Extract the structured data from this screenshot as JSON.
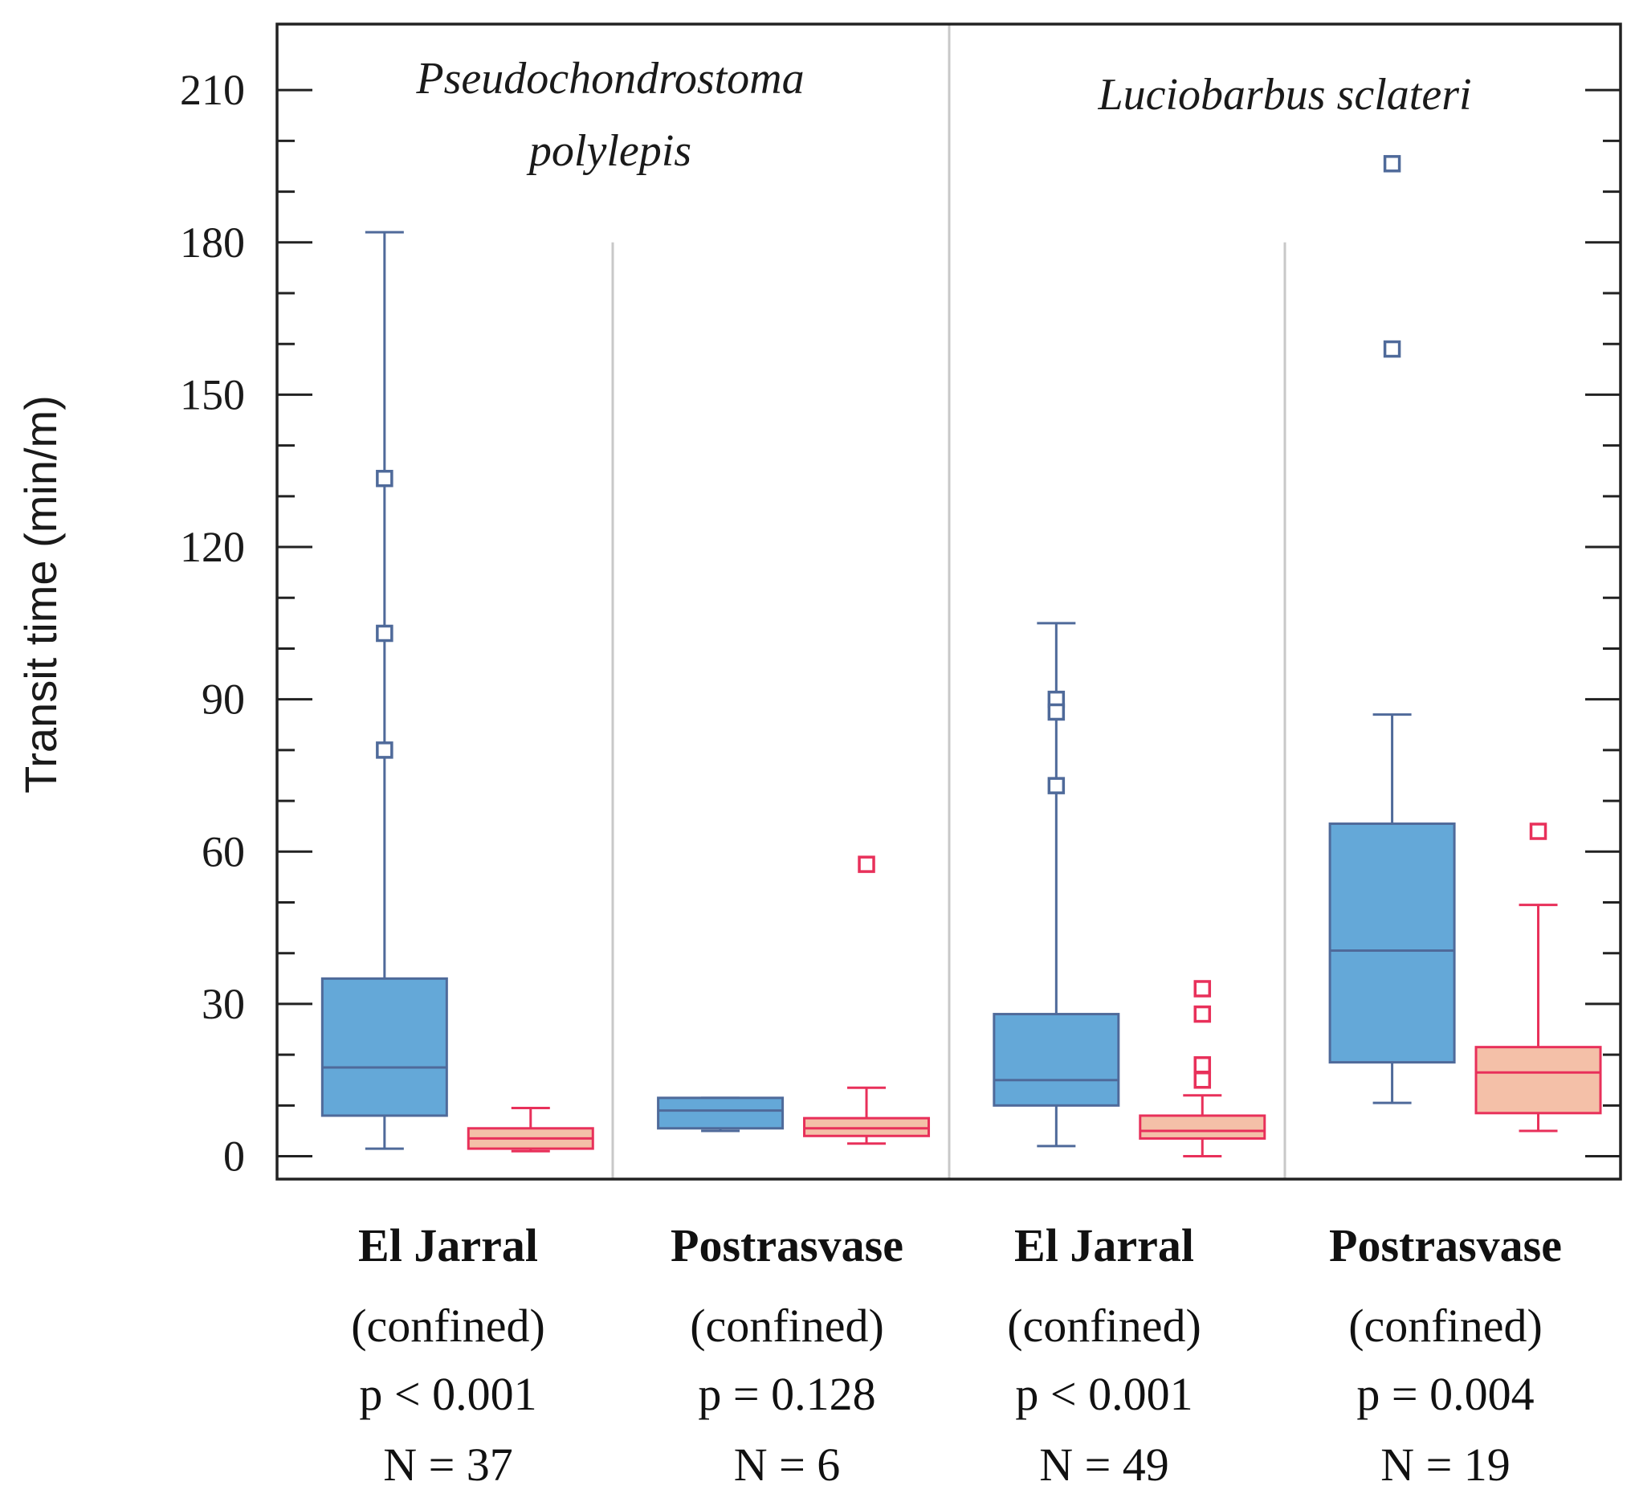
{
  "chart_data": {
    "type": "box",
    "ylabel": "Transit time (min/m)",
    "ylim": [
      -4.5,
      223
    ],
    "yticks": [
      0,
      30,
      60,
      90,
      120,
      150,
      180,
      210
    ],
    "grid": false,
    "species": [
      {
        "name": [
          "Pseudochondrostoma",
          "polylepis"
        ]
      },
      {
        "name": [
          "Luciobarbus sclateri"
        ]
      }
    ],
    "groups": [
      {
        "name": "El Jarral",
        "note": "(confined)",
        "p": "p < 0.001",
        "n": "N = 37"
      },
      {
        "name": "Postrasvase",
        "note": "(confined)",
        "p": "p = 0.128",
        "n": "N = 6"
      },
      {
        "name": "El Jarral",
        "note": "(confined)",
        "p": "p < 0.001",
        "n": "N = 49"
      },
      {
        "name": "Postrasvase",
        "note": "(confined)",
        "p": "p = 0.004",
        "n": "N = 19"
      }
    ],
    "series": [
      {
        "name": "blue",
        "fill": "#64a8d8",
        "stroke": "#4f6a9a",
        "boxes": [
          {
            "whisker_low": 1.5,
            "q1": 8,
            "median": 17.5,
            "q3": 35,
            "whisker_high": 182,
            "outliers": [
              133.5,
              103,
              80
            ]
          },
          {
            "whisker_low": 5,
            "q1": 5.5,
            "median": 9,
            "q3": 11.5,
            "whisker_high": 11.5,
            "outliers": []
          },
          {
            "whisker_low": 2,
            "q1": 10,
            "median": 15,
            "q3": 28,
            "whisker_high": 105,
            "outliers": [
              90,
              87.5,
              73
            ]
          },
          {
            "whisker_low": 10.5,
            "q1": 18.5,
            "median": 40.5,
            "q3": 65.5,
            "whisker_high": 87,
            "outliers": [
              195.5,
              159
            ]
          }
        ]
      },
      {
        "name": "red",
        "fill": "#f4c0a8",
        "stroke": "#e8305a",
        "boxes": [
          {
            "whisker_low": 1,
            "q1": 1.5,
            "median": 3.5,
            "q3": 5.5,
            "whisker_high": 9.5,
            "outliers": []
          },
          {
            "whisker_low": 2.5,
            "q1": 4,
            "median": 5.5,
            "q3": 7.5,
            "whisker_high": 13.5,
            "outliers": [
              57.5
            ]
          },
          {
            "whisker_low": 0,
            "q1": 3.5,
            "median": 5,
            "q3": 8,
            "whisker_high": 12,
            "outliers": [
              33,
              28,
              18,
              15
            ]
          },
          {
            "whisker_low": 5,
            "q1": 8.5,
            "median": 16.5,
            "q3": 21.5,
            "whisker_high": 49.5,
            "outliers": [
              64
            ]
          }
        ]
      }
    ]
  }
}
